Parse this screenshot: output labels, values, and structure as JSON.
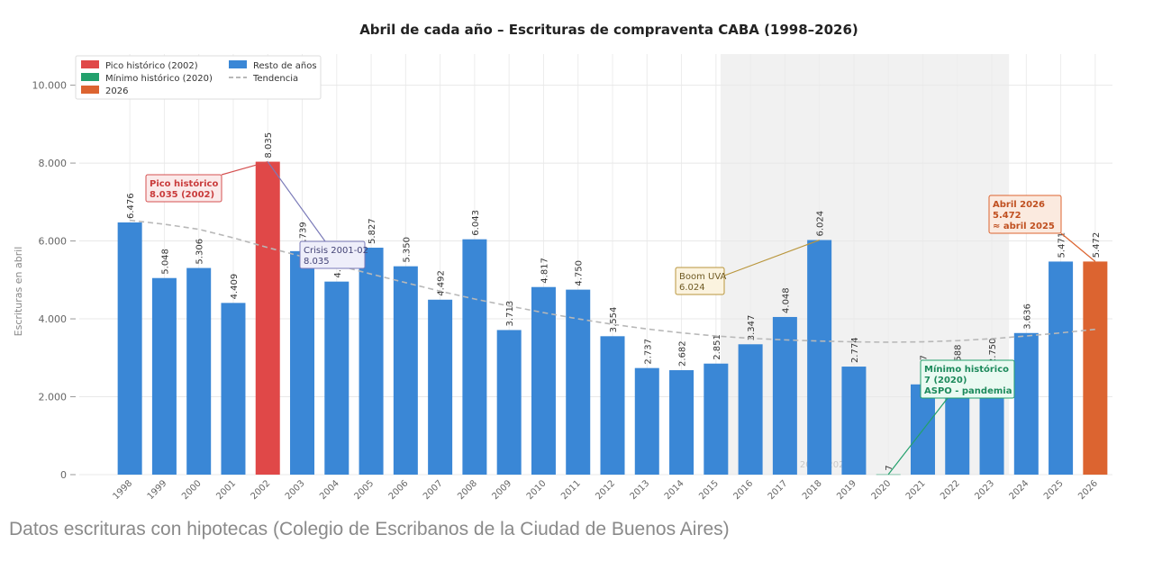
{
  "chart_data": {
    "type": "bar",
    "title": "Abril de cada año – Escrituras de compraventa CABA (1998–2026)",
    "ylabel": "Escrituras en abril",
    "ylim": [
      0,
      10800
    ],
    "yticks": [
      0,
      2000,
      4000,
      6000,
      8000,
      10000
    ],
    "ytick_labels": [
      "0",
      "2.000",
      "4.000",
      "6.000",
      "8.000",
      "10.000"
    ],
    "grid": true,
    "legend_position": "top-left",
    "categories": [
      "1998",
      "1999",
      "2000",
      "2001",
      "2002",
      "2003",
      "2004",
      "2005",
      "2006",
      "2007",
      "2008",
      "2009",
      "2010",
      "2011",
      "2012",
      "2013",
      "2014",
      "2015",
      "2016",
      "2017",
      "2018",
      "2019",
      "2020",
      "2021",
      "2022",
      "2023",
      "2024",
      "2025",
      "2026"
    ],
    "values": [
      6476,
      5048,
      5306,
      4409,
      8035,
      5739,
      4957,
      5827,
      5350,
      4492,
      6043,
      3713,
      4817,
      4750,
      3554,
      2737,
      2682,
      2851,
      3347,
      4048,
      6024,
      2774,
      7,
      2317,
      2588,
      2750,
      3636,
      5471,
      5472
    ],
    "value_labels": [
      "6.476",
      "5.048",
      "5.306",
      "4.409",
      "8.035",
      "5.739",
      "4.957",
      "5.827",
      "5.350",
      "4.492",
      "6.043",
      "3.713",
      "4.817",
      "4.750",
      "3.554",
      "2.737",
      "2.682",
      "2.851",
      "3.347",
      "4.048",
      "6.024",
      "2.774",
      "7",
      "2.317",
      "2.588",
      "2.750",
      "3.636",
      "5.471",
      "5.472"
    ],
    "bar_groups": [
      "rest",
      "rest",
      "rest",
      "rest",
      "peak",
      "rest",
      "rest",
      "rest",
      "rest",
      "rest",
      "rest",
      "rest",
      "rest",
      "rest",
      "rest",
      "rest",
      "rest",
      "rest",
      "rest",
      "rest",
      "rest",
      "rest",
      "min",
      "rest",
      "rest",
      "rest",
      "rest",
      "rest",
      "current"
    ],
    "trend_values": [
      6530,
      6430,
      6300,
      6080,
      5830,
      5600,
      5380,
      5150,
      4930,
      4710,
      4510,
      4330,
      4160,
      4000,
      3860,
      3740,
      3640,
      3560,
      3500,
      3460,
      3430,
      3410,
      3400,
      3410,
      3440,
      3490,
      3560,
      3640,
      3730
    ],
    "colors": {
      "rest": "#3a87d6",
      "peak": "#e04848",
      "min": "#23a06c",
      "current": "#dc6430",
      "trend": "#b8b8b8",
      "shade": "#f1f1f1"
    },
    "shaded_range": [
      "2016",
      "2023"
    ],
    "legend": [
      {
        "label": "Pico histórico (2002)",
        "color": "#e04848",
        "kind": "patch"
      },
      {
        "label": "Mínimo histórico (2020)",
        "color": "#23a06c",
        "kind": "patch"
      },
      {
        "label": "2026",
        "color": "#dc6430",
        "kind": "patch"
      },
      {
        "label": "Resto de años",
        "color": "#3a87d6",
        "kind": "patch"
      },
      {
        "label": "Tendencia",
        "color": "#a0a0a0",
        "kind": "dash"
      }
    ],
    "annotations": [
      {
        "lines": [
          "Pico histórico",
          "8.035 (2002)"
        ],
        "target": "2002",
        "value": 8035,
        "style": "peak"
      },
      {
        "lines": [
          "Crisis 2001-02",
          "8.035"
        ],
        "target": "2002",
        "value": 8035,
        "style": "crisis"
      },
      {
        "lines": [
          "Boom UVA",
          "6.024"
        ],
        "target": "2018",
        "value": 6024,
        "style": "boom"
      },
      {
        "lines": [
          "Mínimo histórico",
          "7 (2020)",
          "ASPO - pandemia"
        ],
        "target": "2020",
        "value": 7,
        "style": "min"
      },
      {
        "lines": [
          "Abril 2026",
          "5.472",
          "≈ abril 2025"
        ],
        "target": "2026",
        "value": 5472,
        "style": "current"
      }
    ],
    "watermark": "Años 2016–2023"
  },
  "caption": "Datos escrituras con hipotecas (Colegio de Escribanos de la Ciudad de Buenos Aires)"
}
